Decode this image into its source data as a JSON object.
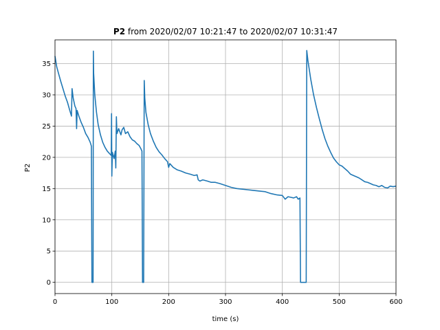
{
  "chart_data": {
    "type": "line",
    "title_bold": "P2",
    "title_rest": " from 2020/02/07 10:21:47 to 2020/02/07 10:31:47",
    "xlabel": "time (s)",
    "ylabel": "P2",
    "xlim": [
      0,
      600
    ],
    "ylim": [
      -1.8,
      38.8
    ],
    "xticks": [
      0,
      100,
      200,
      300,
      400,
      500,
      600
    ],
    "yticks": [
      0,
      5,
      10,
      15,
      20,
      25,
      30,
      35
    ],
    "grid": true,
    "legend": "none",
    "series": [
      {
        "color": "#1f77b4",
        "points": [
          [
            0,
            36.2
          ],
          [
            3,
            34.5
          ],
          [
            6,
            33.5
          ],
          [
            10,
            32.2
          ],
          [
            14,
            31.0
          ],
          [
            18,
            29.8
          ],
          [
            22,
            28.8
          ],
          [
            26,
            27.5
          ],
          [
            29,
            26.6
          ],
          [
            30,
            31.0
          ],
          [
            32,
            29.5
          ],
          [
            35,
            28.2
          ],
          [
            37,
            27.8
          ],
          [
            38,
            24.6
          ],
          [
            39,
            27.5
          ],
          [
            42,
            26.6
          ],
          [
            46,
            25.6
          ],
          [
            50,
            24.8
          ],
          [
            54,
            23.8
          ],
          [
            58,
            23.2
          ],
          [
            62,
            22.4
          ],
          [
            64,
            21.8
          ],
          [
            65,
            0
          ],
          [
            67,
            0
          ],
          [
            67.5,
            37.0
          ],
          [
            68,
            33.5
          ],
          [
            70,
            30.0
          ],
          [
            73,
            27.2
          ],
          [
            76,
            25.2
          ],
          [
            80,
            23.6
          ],
          [
            84,
            22.4
          ],
          [
            88,
            21.6
          ],
          [
            92,
            21.0
          ],
          [
            96,
            20.6
          ],
          [
            99,
            20.3
          ],
          [
            99.5,
            27.0
          ],
          [
            100,
            17.0
          ],
          [
            101,
            20.8
          ],
          [
            104,
            19.8
          ],
          [
            106,
            21.0
          ],
          [
            107,
            18.3
          ],
          [
            108,
            26.5
          ],
          [
            109,
            23.8
          ],
          [
            112,
            24.6
          ],
          [
            116,
            23.6
          ],
          [
            118,
            24.4
          ],
          [
            121,
            24.8
          ],
          [
            124,
            23.8
          ],
          [
            128,
            24.1
          ],
          [
            132,
            23.3
          ],
          [
            136,
            22.8
          ],
          [
            140,
            22.6
          ],
          [
            144,
            22.2
          ],
          [
            148,
            21.9
          ],
          [
            151,
            21.4
          ],
          [
            153,
            21.0
          ],
          [
            154,
            0
          ],
          [
            156,
            0
          ],
          [
            157,
            32.3
          ],
          [
            158,
            29.5
          ],
          [
            160,
            27.2
          ],
          [
            164,
            25.2
          ],
          [
            168,
            23.8
          ],
          [
            173,
            22.6
          ],
          [
            178,
            21.6
          ],
          [
            183,
            20.9
          ],
          [
            188,
            20.4
          ],
          [
            193,
            19.8
          ],
          [
            198,
            19.3
          ],
          [
            200,
            18.4
          ],
          [
            202,
            19.0
          ],
          [
            208,
            18.4
          ],
          [
            215,
            18.0
          ],
          [
            222,
            17.8
          ],
          [
            230,
            17.5
          ],
          [
            238,
            17.3
          ],
          [
            245,
            17.1
          ],
          [
            250,
            17.2
          ],
          [
            252,
            16.4
          ],
          [
            255,
            16.2
          ],
          [
            260,
            16.4
          ],
          [
            268,
            16.2
          ],
          [
            275,
            16.0
          ],
          [
            282,
            16.0
          ],
          [
            290,
            15.8
          ],
          [
            300,
            15.5
          ],
          [
            310,
            15.2
          ],
          [
            320,
            15.0
          ],
          [
            330,
            14.9
          ],
          [
            340,
            14.8
          ],
          [
            350,
            14.7
          ],
          [
            360,
            14.6
          ],
          [
            370,
            14.5
          ],
          [
            380,
            14.2
          ],
          [
            390,
            14.0
          ],
          [
            400,
            13.9
          ],
          [
            405,
            13.3
          ],
          [
            410,
            13.7
          ],
          [
            415,
            13.6
          ],
          [
            420,
            13.5
          ],
          [
            425,
            13.7
          ],
          [
            428,
            13.3
          ],
          [
            431,
            13.5
          ],
          [
            432,
            0
          ],
          [
            442,
            0
          ],
          [
            443,
            37.1
          ],
          [
            445,
            35.5
          ],
          [
            450,
            32.5
          ],
          [
            455,
            30.0
          ],
          [
            460,
            28.0
          ],
          [
            465,
            26.2
          ],
          [
            470,
            24.5
          ],
          [
            475,
            23.0
          ],
          [
            480,
            21.8
          ],
          [
            485,
            20.8
          ],
          [
            490,
            19.9
          ],
          [
            495,
            19.3
          ],
          [
            500,
            18.8
          ],
          [
            505,
            18.6
          ],
          [
            510,
            18.2
          ],
          [
            515,
            17.8
          ],
          [
            520,
            17.3
          ],
          [
            525,
            17.1
          ],
          [
            530,
            16.9
          ],
          [
            535,
            16.7
          ],
          [
            540,
            16.4
          ],
          [
            545,
            16.1
          ],
          [
            550,
            16.0
          ],
          [
            555,
            15.8
          ],
          [
            560,
            15.6
          ],
          [
            565,
            15.5
          ],
          [
            570,
            15.3
          ],
          [
            575,
            15.5
          ],
          [
            580,
            15.2
          ],
          [
            585,
            15.1
          ],
          [
            590,
            15.4
          ],
          [
            595,
            15.3
          ],
          [
            600,
            15.4
          ]
        ]
      }
    ]
  }
}
